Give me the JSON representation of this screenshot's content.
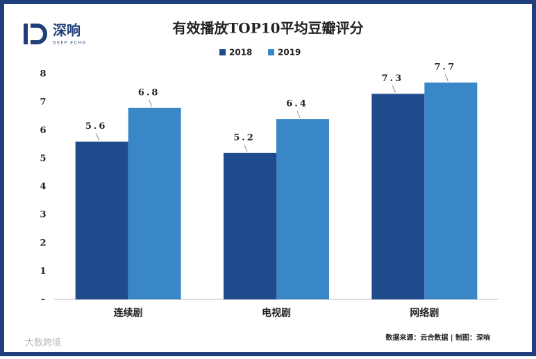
{
  "chart_data": {
    "type": "bar",
    "title": "有效播放TOP10平均豆瓣评分",
    "logo_text": "深响",
    "logo_subtitle": "DEEP ECHO",
    "categories": [
      "连续剧",
      "电视剧",
      "网络剧"
    ],
    "series": [
      {
        "name": "2018",
        "color": "#1f4a8c",
        "values": [
          5.6,
          5.2,
          7.3
        ]
      },
      {
        "name": "2019",
        "color": "#3a87c8",
        "values": [
          6.8,
          6.4,
          7.7
        ]
      }
    ],
    "ylim": [
      0,
      8
    ],
    "yticks": [
      {
        "value": 0,
        "label": "–"
      },
      1,
      2,
      3,
      4,
      5,
      6,
      7,
      8
    ],
    "source": "数据来源：云合数据 | 制图：深响",
    "watermark": "大数跨境"
  }
}
